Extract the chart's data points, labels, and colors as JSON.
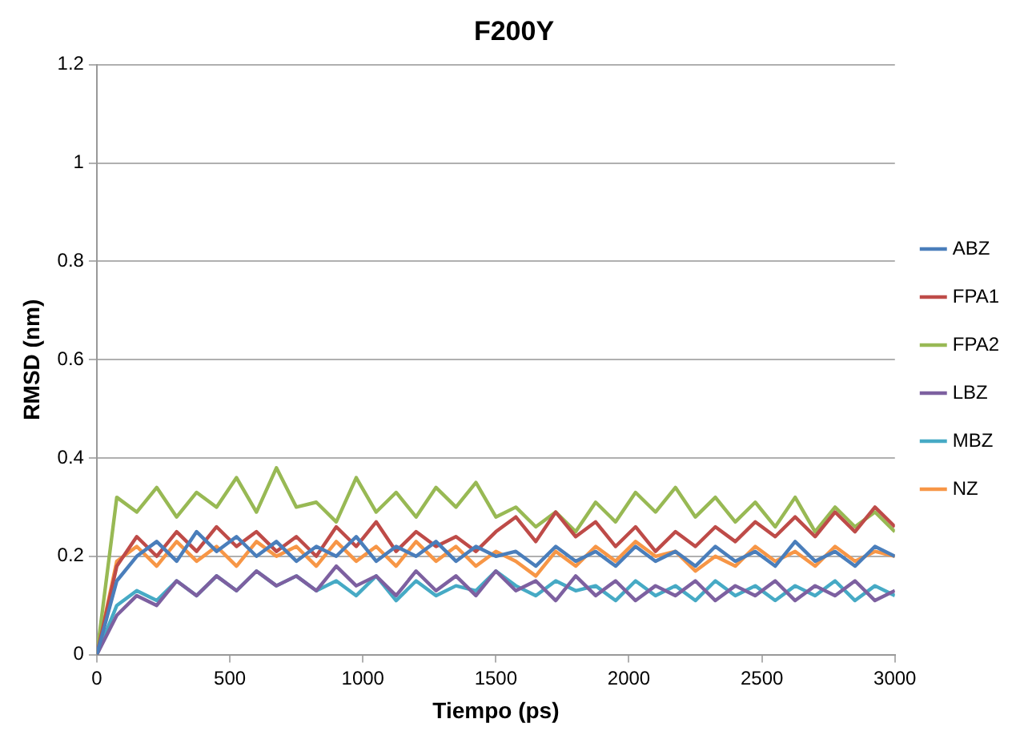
{
  "chart_data": {
    "type": "line",
    "title": "F200Y",
    "xlabel": "Tiempo (ps)",
    "ylabel": "RMSD (nm)",
    "x": [
      0,
      75,
      150,
      225,
      300,
      375,
      450,
      525,
      600,
      675,
      750,
      825,
      900,
      975,
      1050,
      1125,
      1200,
      1275,
      1350,
      1425,
      1500,
      1575,
      1650,
      1725,
      1800,
      1875,
      1950,
      2025,
      2100,
      2175,
      2250,
      2325,
      2400,
      2475,
      2550,
      2625,
      2700,
      2775,
      2850,
      2925,
      3000
    ],
    "series": [
      {
        "name": "ABZ",
        "color": "#4a7ebb",
        "values": [
          0,
          0.15,
          0.2,
          0.23,
          0.19,
          0.25,
          0.21,
          0.24,
          0.2,
          0.23,
          0.19,
          0.22,
          0.2,
          0.24,
          0.19,
          0.22,
          0.2,
          0.23,
          0.19,
          0.22,
          0.2,
          0.21,
          0.18,
          0.22,
          0.19,
          0.21,
          0.18,
          0.22,
          0.19,
          0.21,
          0.18,
          0.22,
          0.19,
          0.21,
          0.18,
          0.23,
          0.19,
          0.21,
          0.18,
          0.22,
          0.2
        ]
      },
      {
        "name": "FPA1",
        "color": "#be4b48",
        "values": [
          0,
          0.18,
          0.24,
          0.2,
          0.25,
          0.21,
          0.26,
          0.22,
          0.25,
          0.21,
          0.24,
          0.2,
          0.26,
          0.22,
          0.27,
          0.21,
          0.25,
          0.22,
          0.24,
          0.21,
          0.25,
          0.28,
          0.23,
          0.29,
          0.24,
          0.27,
          0.22,
          0.26,
          0.21,
          0.25,
          0.22,
          0.26,
          0.23,
          0.27,
          0.24,
          0.28,
          0.24,
          0.29,
          0.25,
          0.3,
          0.26
        ]
      },
      {
        "name": "FPA2",
        "color": "#98b954",
        "values": [
          0,
          0.32,
          0.29,
          0.34,
          0.28,
          0.33,
          0.3,
          0.36,
          0.29,
          0.38,
          0.3,
          0.31,
          0.27,
          0.36,
          0.29,
          0.33,
          0.28,
          0.34,
          0.3,
          0.35,
          0.28,
          0.3,
          0.26,
          0.29,
          0.25,
          0.31,
          0.27,
          0.33,
          0.29,
          0.34,
          0.28,
          0.32,
          0.27,
          0.31,
          0.26,
          0.32,
          0.25,
          0.3,
          0.26,
          0.29,
          0.25
        ]
      },
      {
        "name": "LBZ",
        "color": "#7d60a0",
        "values": [
          0,
          0.08,
          0.12,
          0.1,
          0.15,
          0.12,
          0.16,
          0.13,
          0.17,
          0.14,
          0.16,
          0.13,
          0.18,
          0.14,
          0.16,
          0.12,
          0.17,
          0.13,
          0.16,
          0.12,
          0.17,
          0.13,
          0.15,
          0.11,
          0.16,
          0.12,
          0.15,
          0.11,
          0.14,
          0.12,
          0.15,
          0.11,
          0.14,
          0.12,
          0.15,
          0.11,
          0.14,
          0.12,
          0.15,
          0.11,
          0.13
        ]
      },
      {
        "name": "MBZ",
        "color": "#46aac5",
        "values": [
          0,
          0.1,
          0.13,
          0.11,
          0.15,
          0.12,
          0.16,
          0.13,
          0.17,
          0.14,
          0.16,
          0.13,
          0.15,
          0.12,
          0.16,
          0.11,
          0.15,
          0.12,
          0.14,
          0.13,
          0.17,
          0.14,
          0.12,
          0.15,
          0.13,
          0.14,
          0.11,
          0.15,
          0.12,
          0.14,
          0.11,
          0.15,
          0.12,
          0.14,
          0.11,
          0.14,
          0.12,
          0.15,
          0.11,
          0.14,
          0.12
        ]
      },
      {
        "name": "NZ",
        "color": "#f79646",
        "values": [
          0,
          0.19,
          0.22,
          0.18,
          0.23,
          0.19,
          0.22,
          0.18,
          0.23,
          0.2,
          0.22,
          0.18,
          0.23,
          0.19,
          0.22,
          0.18,
          0.23,
          0.19,
          0.22,
          0.18,
          0.21,
          0.19,
          0.16,
          0.21,
          0.18,
          0.22,
          0.19,
          0.23,
          0.2,
          0.21,
          0.17,
          0.2,
          0.18,
          0.22,
          0.19,
          0.21,
          0.18,
          0.22,
          0.19,
          0.21,
          0.2
        ]
      }
    ],
    "xlim": [
      0,
      3000
    ],
    "xticks": [
      0,
      500,
      1000,
      1500,
      2000,
      2500,
      3000
    ],
    "ylim": [
      0,
      1.2
    ],
    "yticks": [
      0,
      0.2,
      0.4,
      0.6,
      0.8,
      1,
      1.2
    ],
    "grid": "y",
    "legend": "right",
    "marker": "none",
    "line_style": "solid"
  }
}
